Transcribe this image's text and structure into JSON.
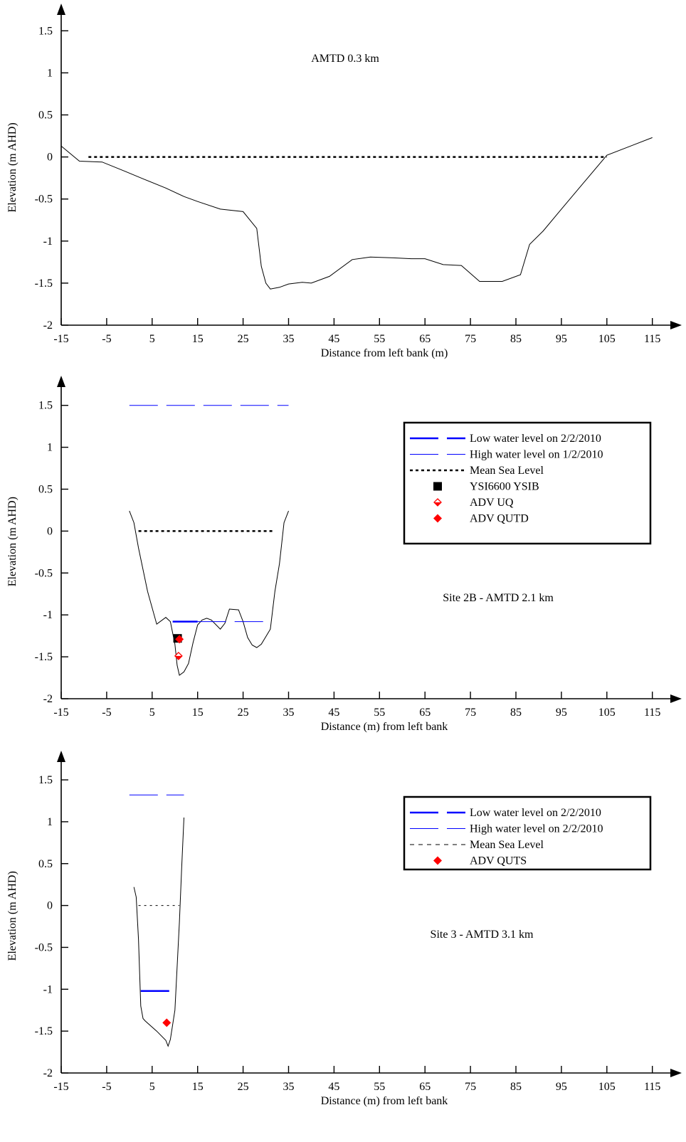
{
  "colors": {
    "profile": "#000000",
    "water_level": "#0000ff",
    "msl": "#000000",
    "ysi": "#000000",
    "adv": "#ff0000"
  },
  "chart_data": [
    {
      "type": "line",
      "panel": "top",
      "title": "AMTD 0.3 km",
      "xlabel": "Distance from left bank (m)",
      "ylabel": "Elevation (m AHD)",
      "xlim": [
        -15,
        117
      ],
      "ylim": [
        -2,
        1.75
      ],
      "xticks": [
        "-15",
        "-5",
        "5",
        "15",
        "25",
        "35",
        "45",
        "55",
        "65",
        "75",
        "85",
        "95",
        "105",
        "115"
      ],
      "yticks": [
        "1.5",
        "1",
        "0.5",
        "0",
        "-0.5",
        "-1",
        "-1.5",
        "-2"
      ],
      "series": [
        {
          "kind": "profile",
          "x": [
            -15,
            -11,
            -6,
            -1,
            3,
            8,
            12,
            15,
            20,
            25,
            28,
            29,
            30,
            31,
            33,
            35,
            38,
            40,
            44,
            49,
            53,
            58,
            62,
            65,
            69,
            73,
            77,
            82,
            86,
            88,
            91,
            95,
            100,
            105,
            115
          ],
          "y": [
            0.13,
            -0.05,
            -0.06,
            -0.17,
            -0.26,
            -0.37,
            -0.47,
            -0.53,
            -0.62,
            -0.65,
            -0.85,
            -1.3,
            -1.5,
            -1.57,
            -1.55,
            -1.51,
            -1.49,
            -1.5,
            -1.42,
            -1.22,
            -1.19,
            -1.2,
            -1.21,
            -1.21,
            -1.28,
            -1.29,
            -1.48,
            -1.48,
            -1.4,
            -1.04,
            -0.88,
            -0.62,
            -0.3,
            0.02,
            0.23
          ]
        },
        {
          "kind": "msl",
          "x": [
            -9,
            105
          ],
          "y": [
            0,
            0
          ]
        }
      ]
    },
    {
      "type": "line",
      "panel": "middle",
      "title": "Site 2B - AMTD 2.1 km",
      "xlabel": "Distance (m) from left bank",
      "ylabel": "Elevation (m AHD)",
      "xlim": [
        -15,
        117
      ],
      "ylim": [
        -2,
        1.75
      ],
      "xticks": [
        "-15",
        "-5",
        "5",
        "15",
        "25",
        "35",
        "45",
        "55",
        "65",
        "75",
        "85",
        "95",
        "105",
        "115"
      ],
      "yticks": [
        "1.5",
        "1",
        "0.5",
        "0",
        "-0.5",
        "-1",
        "-1.5",
        "-2"
      ],
      "legend": {
        "position": "top-right",
        "entries": [
          "Low water level on 2/2/2010",
          "High water level on 1/2/2010",
          "Mean Sea Level",
          "YSI6600 YSIB",
          "ADV UQ",
          "ADV QUTD"
        ]
      },
      "series": [
        {
          "kind": "profile",
          "x": [
            0,
            1,
            2,
            4,
            6,
            8,
            9,
            10,
            10.5,
            11,
            12,
            13,
            14,
            15,
            16,
            17,
            18,
            20,
            21,
            22,
            24,
            25,
            26,
            27,
            28,
            29,
            30,
            31,
            32,
            33,
            34,
            35
          ],
          "y": [
            0.24,
            0.1,
            -0.2,
            -0.72,
            -1.11,
            -1.03,
            -1.08,
            -1.35,
            -1.6,
            -1.72,
            -1.68,
            -1.58,
            -1.33,
            -1.12,
            -1.06,
            -1.04,
            -1.06,
            -1.17,
            -1.1,
            -0.93,
            -0.94,
            -1.08,
            -1.27,
            -1.36,
            -1.39,
            -1.35,
            -1.26,
            -1.17,
            -0.72,
            -0.39,
            0.1,
            0.24
          ]
        },
        {
          "name": "Mean Sea Level",
          "kind": "msl",
          "x": [
            2,
            32
          ],
          "y": [
            0,
            0
          ]
        },
        {
          "name": "Low water level on 2/2/2010",
          "kind": "low",
          "x": [
            9.5,
            15
          ],
          "y": [
            -1.08,
            -1.08
          ]
        },
        {
          "name": "High water level on 1/2/2010",
          "kind": "high",
          "x": [
            15,
            31
          ],
          "y": [
            -1.08,
            -1.08
          ]
        },
        {
          "name": "High water level on 1/2/2010",
          "kind": "high",
          "x": [
            0,
            35
          ],
          "y": [
            1.5,
            1.5
          ]
        },
        {
          "name": "YSI6600 YSIB",
          "kind": "ysi",
          "x": [
            10.6
          ],
          "y": [
            -1.28
          ]
        },
        {
          "name": "ADV UQ",
          "kind": "adv-open",
          "x": [
            10.8
          ],
          "y": [
            -1.49
          ]
        },
        {
          "name": "ADV QUTD",
          "kind": "adv",
          "x": [
            11
          ],
          "y": [
            -1.29
          ]
        }
      ]
    },
    {
      "type": "line",
      "panel": "bottom",
      "title": "Site 3 - AMTD 3.1 km",
      "xlabel": "Distance (m) from left bank",
      "ylabel": "Elevation (m AHD)",
      "xlim": [
        -15,
        117
      ],
      "ylim": [
        -2,
        1.75
      ],
      "xticks": [
        "-15",
        "-5",
        "5",
        "15",
        "25",
        "35",
        "45",
        "55",
        "65",
        "75",
        "85",
        "95",
        "105",
        "115"
      ],
      "yticks": [
        "1.5",
        "1",
        "0.5",
        "0",
        "-0.5",
        "-1",
        "-1.5",
        "-2"
      ],
      "legend": {
        "position": "top-right",
        "entries": [
          "Low water level on 2/2/2010",
          "High water level on 2/2/2010",
          "Mean Sea Level",
          "ADV QUTS"
        ]
      },
      "series": [
        {
          "kind": "profile",
          "x": [
            1,
            1.5,
            2,
            2.5,
            3,
            3.5,
            6,
            8,
            8.5,
            9,
            10,
            11,
            11.5,
            12
          ],
          "y": [
            0.22,
            0.1,
            -0.4,
            -1.2,
            -1.35,
            -1.38,
            -1.5,
            -1.61,
            -1.68,
            -1.6,
            -1.25,
            -0.2,
            0.45,
            1.05
          ]
        },
        {
          "name": "Mean Sea Level",
          "kind": "msl-thin",
          "x": [
            2,
            11
          ],
          "y": [
            0,
            0
          ]
        },
        {
          "name": "Low water level on 2/2/2010",
          "kind": "low",
          "x": [
            2.5,
            9
          ],
          "y": [
            -1.02,
            -1.02
          ]
        },
        {
          "name": "High water level on 2/2/2010",
          "kind": "high",
          "x": [
            0,
            12
          ],
          "y": [
            1.32,
            1.32
          ]
        },
        {
          "name": "ADV QUTS",
          "kind": "adv",
          "x": [
            8.2
          ],
          "y": [
            -1.4
          ]
        }
      ]
    }
  ]
}
